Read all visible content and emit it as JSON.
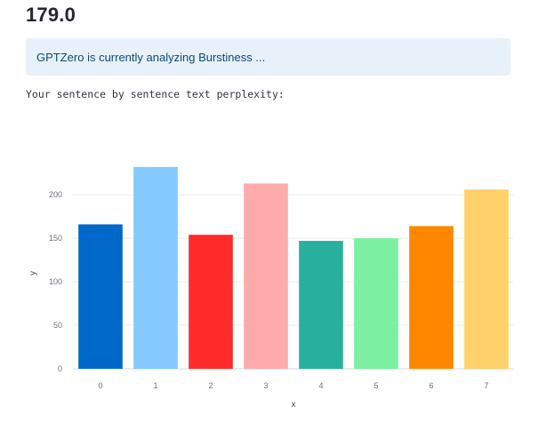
{
  "score": "179.0",
  "info_message": "GPTZero is currently analyzing Burstiness ...",
  "perplexity_label": "Your sentence by sentence text perplexity:",
  "chart_data": {
    "type": "bar",
    "categories": [
      "0",
      "1",
      "2",
      "3",
      "4",
      "5",
      "6",
      "7"
    ],
    "values": [
      166,
      232,
      154,
      213,
      147,
      150,
      164,
      206
    ],
    "colors": [
      "#0068c9",
      "#83c9ff",
      "#ff2b2b",
      "#ffabab",
      "#29b09d",
      "#7defa1",
      "#ff8700",
      "#ffd16a"
    ],
    "title": "",
    "xlabel": "x",
    "ylabel": "y",
    "ylim": [
      0,
      240
    ],
    "yticks": [
      0,
      50,
      100,
      150,
      200
    ],
    "grid": true,
    "legend": "none"
  }
}
